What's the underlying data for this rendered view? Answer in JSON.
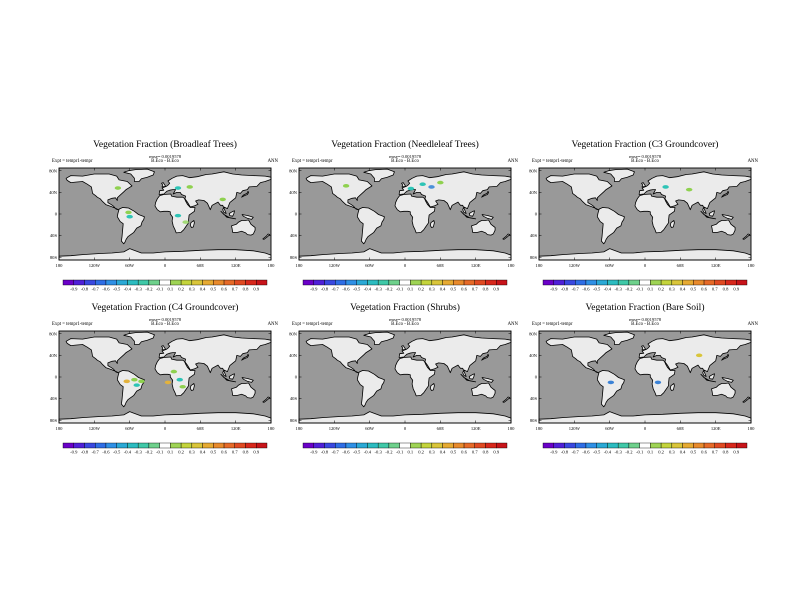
{
  "chart_data": [
    {
      "type": "heatmap",
      "title": "Vegetation Fraction (Broadleaf Trees)",
      "stat": "rmse= 0.0019578",
      "expt": "Expt = tempr1-tempr",
      "diff": "B.Eco - B.Eco",
      "season": "ANN",
      "lat_ticks": [
        "80N",
        "40N",
        "0",
        "40S",
        "80S"
      ],
      "lon_ticks": [
        "180",
        "120W",
        "60W",
        "0",
        "60E",
        "120E",
        "180"
      ],
      "colorbar": [
        "-0.9",
        "-0.8",
        "-0.7",
        "-0.6",
        "-0.5",
        "-0.4",
        "-0.3",
        "-0.2",
        "-0.1",
        "0.1",
        "0.2",
        "0.3",
        "0.4",
        "0.5",
        "0.6",
        "0.7",
        "0.8",
        "0.9"
      ],
      "blobs": [
        {
          "lon": -80,
          "lat": 48,
          "color": "#8fd14f"
        },
        {
          "lon": 22,
          "lat": 48,
          "color": "#2ec4b6"
        },
        {
          "lon": 42,
          "lat": 50,
          "color": "#8fd14f"
        },
        {
          "lon": -60,
          "lat": -5,
          "color": "#2ec4b6"
        },
        {
          "lon": -62,
          "lat": 3,
          "color": "#8fd14f"
        },
        {
          "lon": 22,
          "lat": -3,
          "color": "#2ec4b6"
        },
        {
          "lon": 35,
          "lat": -15,
          "color": "#a3d977"
        },
        {
          "lon": 98,
          "lat": 27,
          "color": "#8fd14f"
        }
      ]
    },
    {
      "type": "heatmap",
      "title": "Vegetation Fraction (Needleleaf Trees)",
      "stat": "rmse= 0.0019578",
      "expt": "Expt = tempr1-tempr",
      "diff": "B.Eco - B.Eco",
      "season": "ANN",
      "lat_ticks": [
        "80N",
        "40N",
        "0",
        "40S",
        "80S"
      ],
      "lon_ticks": [
        "180",
        "120W",
        "60W",
        "0",
        "60E",
        "120E",
        "180"
      ],
      "colorbar": [
        "-0.9",
        "-0.8",
        "-0.7",
        "-0.6",
        "-0.5",
        "-0.4",
        "-0.3",
        "-0.2",
        "-0.1",
        "0.1",
        "0.2",
        "0.3",
        "0.4",
        "0.5",
        "0.6",
        "0.7",
        "0.8",
        "0.9"
      ],
      "blobs": [
        {
          "lon": -100,
          "lat": 52,
          "color": "#8fd14f"
        },
        {
          "lon": 30,
          "lat": 55,
          "color": "#2ec4b6"
        },
        {
          "lon": 45,
          "lat": 50,
          "color": "#4a90d9"
        },
        {
          "lon": 60,
          "lat": 58,
          "color": "#8fd14f"
        },
        {
          "lon": 10,
          "lat": 47,
          "color": "#2ec4b6"
        }
      ]
    },
    {
      "type": "heatmap",
      "title": "Vegetation Fraction (C3 Groundcover)",
      "stat": "rmse= 0.0019578",
      "expt": "Expt = tempr1-tempr",
      "diff": "B.Eco - B.Eco",
      "season": "ANN",
      "lat_ticks": [
        "80N",
        "40N",
        "0",
        "40S",
        "80S"
      ],
      "lon_ticks": [
        "180",
        "120W",
        "60W",
        "0",
        "60E",
        "120E",
        "180"
      ],
      "colorbar": [
        "-0.9",
        "-0.8",
        "-0.7",
        "-0.6",
        "-0.5",
        "-0.4",
        "-0.3",
        "-0.2",
        "-0.1",
        "0.1",
        "0.2",
        "0.3",
        "0.4",
        "0.5",
        "0.6",
        "0.7",
        "0.8",
        "0.9"
      ],
      "blobs": [
        {
          "lon": 35,
          "lat": 50,
          "color": "#2ec4b6"
        },
        {
          "lon": 75,
          "lat": 45,
          "color": "#8fd14f"
        }
      ]
    },
    {
      "type": "heatmap",
      "title": "Vegetation Fraction (C4 Groundcover)",
      "stat": "rmse= 0.0019578",
      "expt": "Expt = tempr1-tempr",
      "diff": "B.Eco - B.Eco",
      "season": "ANN",
      "lat_ticks": [
        "80N",
        "40N",
        "0",
        "40S",
        "80S"
      ],
      "lon_ticks": [
        "180",
        "120W",
        "60W",
        "0",
        "60E",
        "120E",
        "180"
      ],
      "colorbar": [
        "-0.9",
        "-0.8",
        "-0.7",
        "-0.6",
        "-0.5",
        "-0.4",
        "-0.3",
        "-0.2",
        "-0.1",
        "0.1",
        "0.2",
        "0.3",
        "0.4",
        "0.5",
        "0.6",
        "0.7",
        "0.8",
        "0.9"
      ],
      "blobs": [
        {
          "lon": -65,
          "lat": -8,
          "color": "#e3b23c"
        },
        {
          "lon": -52,
          "lat": -5,
          "color": "#8fd14f"
        },
        {
          "lon": -40,
          "lat": -8,
          "color": "#8fd14f"
        },
        {
          "lon": -48,
          "lat": -15,
          "color": "#2ec4b6"
        },
        {
          "lon": 15,
          "lat": 10,
          "color": "#8fd14f"
        },
        {
          "lon": 25,
          "lat": -5,
          "color": "#2ec4b6"
        },
        {
          "lon": 30,
          "lat": -18,
          "color": "#8fd14f"
        },
        {
          "lon": 5,
          "lat": -10,
          "color": "#e3b23c"
        }
      ]
    },
    {
      "type": "heatmap",
      "title": "Vegetation Fraction (Shrubs)",
      "stat": "rmse= 0.0019578",
      "expt": "Expt = tempr1-tempr",
      "diff": "B.Eco - B.Eco",
      "season": "ANN",
      "lat_ticks": [
        "80N",
        "40N",
        "0",
        "40S",
        "80S"
      ],
      "lon_ticks": [
        "180",
        "120W",
        "60W",
        "0",
        "60E",
        "120E",
        "180"
      ],
      "colorbar": [
        "-0.9",
        "-0.8",
        "-0.7",
        "-0.6",
        "-0.5",
        "-0.4",
        "-0.3",
        "-0.2",
        "-0.1",
        "0.1",
        "0.2",
        "0.3",
        "0.4",
        "0.5",
        "0.6",
        "0.7",
        "0.8",
        "0.9"
      ],
      "blobs": []
    },
    {
      "type": "heatmap",
      "title": "Vegetation Fraction (Bare Soil)",
      "stat": "rmse= 0.0019578",
      "expt": "Expt = tempr1-tempr",
      "diff": "B.Eco - B.Eco",
      "season": "ANN",
      "lat_ticks": [
        "80N",
        "40N",
        "0",
        "40S",
        "80S"
      ],
      "lon_ticks": [
        "180",
        "120W",
        "60W",
        "0",
        "60E",
        "120E",
        "180"
      ],
      "colorbar": [
        "-0.9",
        "-0.8",
        "-0.7",
        "-0.6",
        "-0.5",
        "-0.4",
        "-0.3",
        "-0.2",
        "-0.1",
        "0.1",
        "0.2",
        "0.3",
        "0.4",
        "0.5",
        "0.6",
        "0.7",
        "0.8",
        "0.9"
      ],
      "blobs": [
        {
          "lon": 92,
          "lat": 40,
          "color": "#d9c53a"
        },
        {
          "lon": -58,
          "lat": -10,
          "color": "#3b82d6"
        },
        {
          "lon": 22,
          "lat": -10,
          "color": "#3b82d6"
        }
      ]
    }
  ],
  "colors": {
    "ocean": "#999999",
    "land": "#ebebeb",
    "colorbar_fill": [
      "#6a00c8",
      "#5020d8",
      "#3a48e0",
      "#2f6ee6",
      "#2f90e6",
      "#2aa9d6",
      "#2cbcc0",
      "#40c9a8",
      "#6fd18c",
      "#ffffff",
      "#9fd455",
      "#c4d43c",
      "#d9c53a",
      "#e6aa32",
      "#e88a2c",
      "#e66a28",
      "#e04a22",
      "#d8281c",
      "#c8141a"
    ]
  }
}
